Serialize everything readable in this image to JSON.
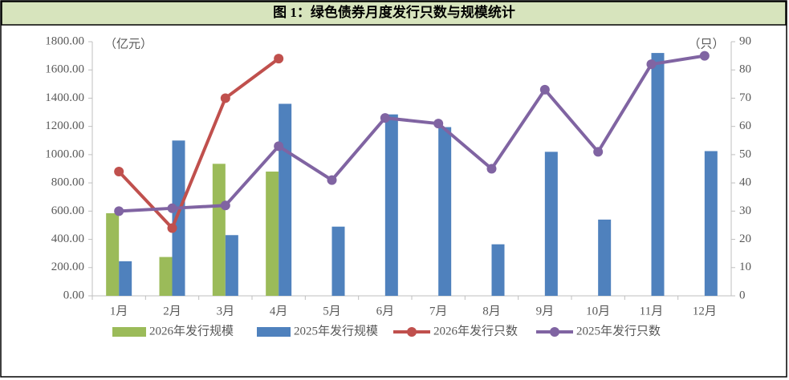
{
  "chart_data": {
    "type": "bar-line",
    "title": "图 1：绿色债券月度发行只数与规模统计",
    "y_unit": "（亿元）",
    "y2_unit": "（只）",
    "categories": [
      "1月",
      "2月",
      "3月",
      "4月",
      "5月",
      "6月",
      "7月",
      "8月",
      "9月",
      "10月",
      "11月",
      "12月"
    ],
    "series": [
      {
        "name": "2026年发行规模",
        "type": "bar",
        "color": "#9bbb59",
        "values": [
          585,
          275,
          935,
          880,
          null,
          null,
          null,
          null,
          null,
          null,
          null,
          null
        ]
      },
      {
        "name": "2025年发行规模",
        "type": "bar",
        "color": "#4f81bd",
        "values": [
          245,
          1100,
          430,
          1360,
          490,
          1285,
          1195,
          365,
          1020,
          540,
          1720,
          1025
        ]
      },
      {
        "name": "2026年发行只数",
        "type": "line",
        "axis": "y2",
        "color": "#c0504d",
        "values": [
          44,
          24,
          70,
          84,
          null,
          null,
          null,
          null,
          null,
          null,
          null,
          null
        ]
      },
      {
        "name": "2025年发行只数",
        "type": "line",
        "axis": "y2",
        "color": "#8064a2",
        "values": [
          30,
          31,
          32,
          53,
          41,
          63,
          61,
          45,
          73,
          51,
          82,
          85
        ]
      }
    ],
    "ylim": [
      0,
      1800
    ],
    "yticks": [
      {
        "value": 0,
        "label": "0.00"
      },
      {
        "value": 200,
        "label": "200.00"
      },
      {
        "value": 400,
        "label": "400.00"
      },
      {
        "value": 600,
        "label": "600.00"
      },
      {
        "value": 800,
        "label": "800.00"
      },
      {
        "value": 1000,
        "label": "1000.00"
      },
      {
        "value": 1200,
        "label": "1200.00"
      },
      {
        "value": 1400,
        "label": "1400.00"
      },
      {
        "value": 1600,
        "label": "1600.00"
      },
      {
        "value": 1800,
        "label": "1800.00"
      }
    ],
    "y2lim": [
      0,
      90
    ],
    "y2ticks": [
      0,
      10,
      20,
      30,
      40,
      50,
      60,
      70,
      80,
      90
    ]
  }
}
